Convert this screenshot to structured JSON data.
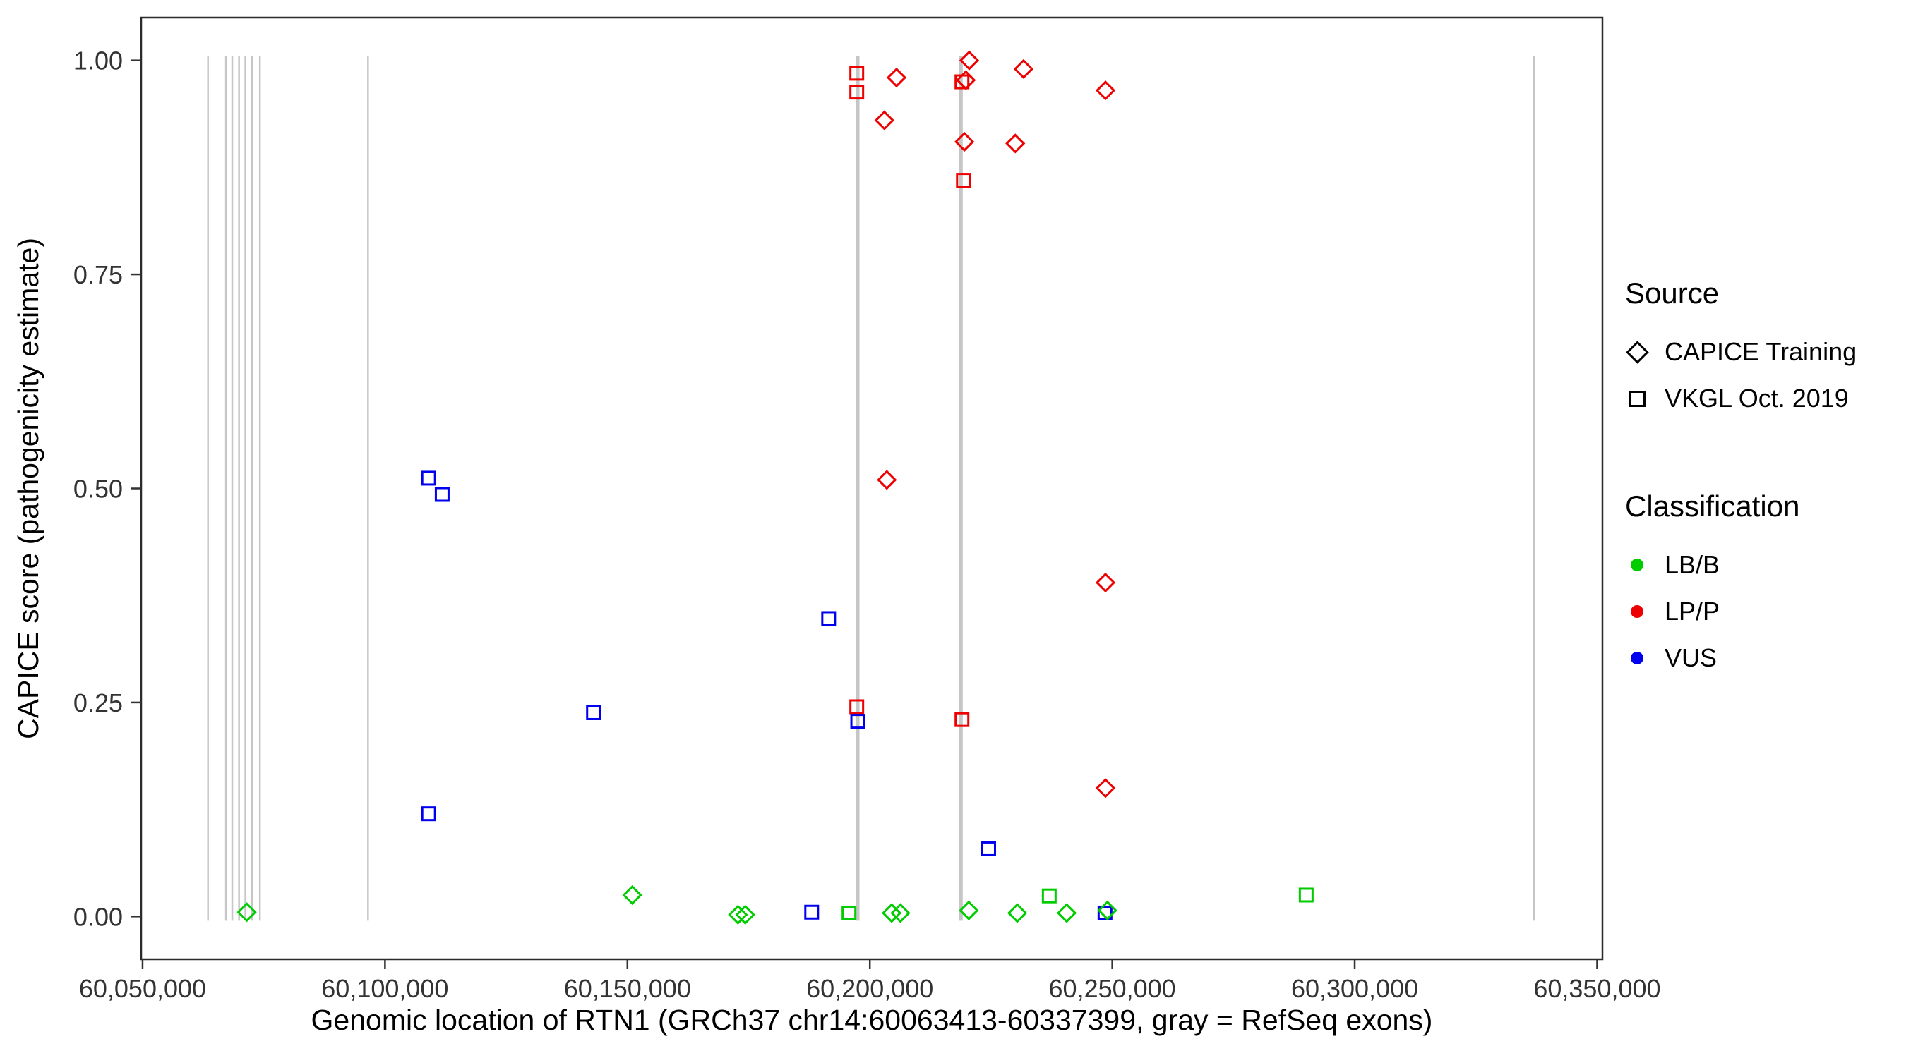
{
  "figure": {
    "background": "#FFFFFF",
    "panel_border_color": "#2b2b2b",
    "tick_label_color": "#333333"
  },
  "chart_data": {
    "type": "scatter",
    "title": "",
    "xlabel": "Genomic location of RTN1 (GRCh37 chr14:60063413-60337399, gray = RefSeq exons)",
    "ylabel": "CAPICE score (pathogenicity estimate)",
    "xlim": [
      60049714,
      60351098
    ],
    "ylim": [
      -0.05,
      1.05
    ],
    "grid": false,
    "legend_position": "right",
    "x_ticks": [
      {
        "value": 60050000,
        "label": "60,050,000"
      },
      {
        "value": 60100000,
        "label": "60,100,000"
      },
      {
        "value": 60150000,
        "label": "60,150,000"
      },
      {
        "value": 60200000,
        "label": "60,200,000"
      },
      {
        "value": 60250000,
        "label": "60,250,000"
      },
      {
        "value": 60300000,
        "label": "60,300,000"
      },
      {
        "value": 60350000,
        "label": "60,350,000"
      }
    ],
    "y_ticks": [
      {
        "value": 0.0,
        "label": "0.00"
      },
      {
        "value": 0.25,
        "label": "0.25"
      },
      {
        "value": 0.5,
        "label": "0.50"
      },
      {
        "value": 0.75,
        "label": "0.75"
      },
      {
        "value": 1.0,
        "label": "1.00"
      }
    ],
    "exons": {
      "color": "#C6C6C6",
      "note": "gray = RefSeq exons",
      "lines": [
        {
          "pos": 60063500,
          "weight": "thin"
        },
        {
          "pos": 60067200,
          "weight": "thin"
        },
        {
          "pos": 60068500,
          "weight": "thin"
        },
        {
          "pos": 60069900,
          "weight": "thin"
        },
        {
          "pos": 60071200,
          "weight": "thin"
        },
        {
          "pos": 60072600,
          "weight": "thin"
        },
        {
          "pos": 60074200,
          "weight": "thin"
        },
        {
          "pos": 60096500,
          "weight": "thin"
        },
        {
          "pos": 60197500,
          "weight": "thick"
        },
        {
          "pos": 60218800,
          "weight": "thick"
        },
        {
          "pos": 60337000,
          "weight": "thin"
        }
      ]
    },
    "shapes": {
      "CAPICE Training": "diamond",
      "VKGL Oct. 2019": "square"
    },
    "colors": {
      "LB/B": "#00CC00",
      "LP/P": "#EE0000",
      "VUS": "#0000EE"
    },
    "points": [
      {
        "x": 60197300,
        "y": 0.985,
        "source": "VKGL Oct. 2019",
        "classification": "LP/P"
      },
      {
        "x": 60197300,
        "y": 0.963,
        "source": "VKGL Oct. 2019",
        "classification": "LP/P"
      },
      {
        "x": 60219000,
        "y": 0.975,
        "source": "VKGL Oct. 2019",
        "classification": "LP/P"
      },
      {
        "x": 60219300,
        "y": 0.86,
        "source": "VKGL Oct. 2019",
        "classification": "LP/P"
      },
      {
        "x": 60197300,
        "y": 0.245,
        "source": "VKGL Oct. 2019",
        "classification": "LP/P"
      },
      {
        "x": 60219000,
        "y": 0.23,
        "source": "VKGL Oct. 2019",
        "classification": "LP/P"
      },
      {
        "x": 60205500,
        "y": 0.98,
        "source": "CAPICE Training",
        "classification": "LP/P"
      },
      {
        "x": 60203000,
        "y": 0.93,
        "source": "CAPICE Training",
        "classification": "LP/P"
      },
      {
        "x": 60203500,
        "y": 0.51,
        "source": "CAPICE Training",
        "classification": "LP/P"
      },
      {
        "x": 60220500,
        "y": 1.0,
        "source": "CAPICE Training",
        "classification": "LP/P"
      },
      {
        "x": 60219800,
        "y": 0.977,
        "source": "CAPICE Training",
        "classification": "LP/P"
      },
      {
        "x": 60219500,
        "y": 0.905,
        "source": "CAPICE Training",
        "classification": "LP/P"
      },
      {
        "x": 60230000,
        "y": 0.903,
        "source": "CAPICE Training",
        "classification": "LP/P"
      },
      {
        "x": 60231700,
        "y": 0.99,
        "source": "CAPICE Training",
        "classification": "LP/P"
      },
      {
        "x": 60248600,
        "y": 0.965,
        "source": "CAPICE Training",
        "classification": "LP/P"
      },
      {
        "x": 60248600,
        "y": 0.39,
        "source": "CAPICE Training",
        "classification": "LP/P"
      },
      {
        "x": 60248600,
        "y": 0.15,
        "source": "CAPICE Training",
        "classification": "LP/P"
      },
      {
        "x": 60109000,
        "y": 0.512,
        "source": "VKGL Oct. 2019",
        "classification": "VUS"
      },
      {
        "x": 60111800,
        "y": 0.493,
        "source": "VKGL Oct. 2019",
        "classification": "VUS"
      },
      {
        "x": 60109000,
        "y": 0.12,
        "source": "VKGL Oct. 2019",
        "classification": "VUS"
      },
      {
        "x": 60143000,
        "y": 0.238,
        "source": "VKGL Oct. 2019",
        "classification": "VUS"
      },
      {
        "x": 60191500,
        "y": 0.348,
        "source": "VKGL Oct. 2019",
        "classification": "VUS"
      },
      {
        "x": 60197500,
        "y": 0.228,
        "source": "VKGL Oct. 2019",
        "classification": "VUS"
      },
      {
        "x": 60224500,
        "y": 0.079,
        "source": "VKGL Oct. 2019",
        "classification": "VUS"
      },
      {
        "x": 60188000,
        "y": 0.005,
        "source": "VKGL Oct. 2019",
        "classification": "VUS"
      },
      {
        "x": 60248500,
        "y": 0.004,
        "source": "VKGL Oct. 2019",
        "classification": "VUS"
      },
      {
        "x": 60071500,
        "y": 0.005,
        "source": "CAPICE Training",
        "classification": "LB/B"
      },
      {
        "x": 60151000,
        "y": 0.025,
        "source": "CAPICE Training",
        "classification": "LB/B"
      },
      {
        "x": 60172800,
        "y": 0.002,
        "source": "CAPICE Training",
        "classification": "LB/B"
      },
      {
        "x": 60174300,
        "y": 0.002,
        "source": "CAPICE Training",
        "classification": "LB/B"
      },
      {
        "x": 60204500,
        "y": 0.004,
        "source": "CAPICE Training",
        "classification": "LB/B"
      },
      {
        "x": 60206300,
        "y": 0.004,
        "source": "CAPICE Training",
        "classification": "LB/B"
      },
      {
        "x": 60220400,
        "y": 0.007,
        "source": "CAPICE Training",
        "classification": "LB/B"
      },
      {
        "x": 60230400,
        "y": 0.004,
        "source": "CAPICE Training",
        "classification": "LB/B"
      },
      {
        "x": 60240600,
        "y": 0.004,
        "source": "CAPICE Training",
        "classification": "LB/B"
      },
      {
        "x": 60249000,
        "y": 0.007,
        "source": "CAPICE Training",
        "classification": "LB/B"
      },
      {
        "x": 60195700,
        "y": 0.004,
        "source": "VKGL Oct. 2019",
        "classification": "LB/B"
      },
      {
        "x": 60237000,
        "y": 0.024,
        "source": "VKGL Oct. 2019",
        "classification": "LB/B"
      },
      {
        "x": 60290000,
        "y": 0.025,
        "source": "VKGL Oct. 2019",
        "classification": "LB/B"
      }
    ]
  },
  "legend": {
    "source": {
      "title": "Source",
      "items": [
        {
          "label": "CAPICE Training",
          "shape": "diamond"
        },
        {
          "label": "VKGL Oct. 2019",
          "shape": "square"
        }
      ]
    },
    "classification": {
      "title": "Classification",
      "items": [
        {
          "label": "LB/B",
          "color": "#00CC00"
        },
        {
          "label": "LP/P",
          "color": "#EE0000"
        },
        {
          "label": "VUS",
          "color": "#0000EE"
        }
      ]
    }
  }
}
